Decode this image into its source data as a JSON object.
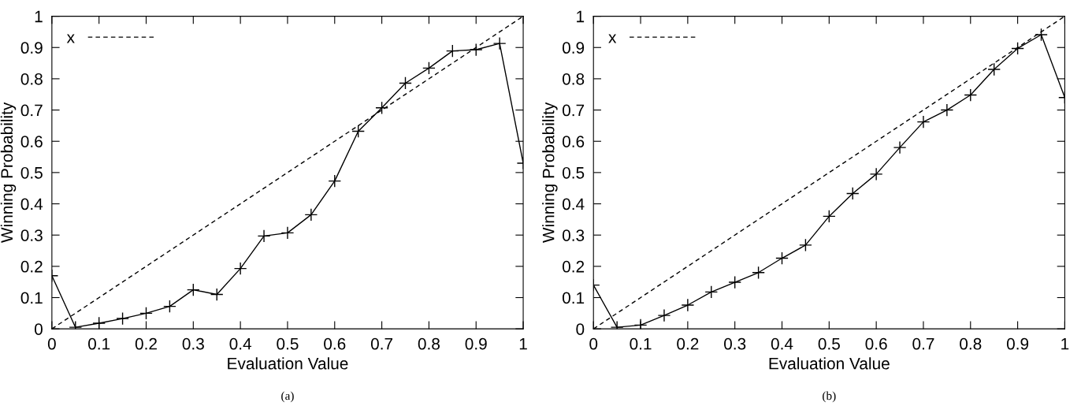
{
  "chart_data": [
    {
      "type": "line",
      "xlabel": "Evaluation Value",
      "ylabel": "Winning Probability",
      "annotations": [
        "(a)"
      ],
      "xlim": [
        0,
        1
      ],
      "ylim": [
        0,
        1
      ],
      "xticks": [
        0,
        0.1,
        0.2,
        0.3,
        0.4,
        0.5,
        0.6,
        0.7,
        0.8,
        0.9,
        1
      ],
      "yticks": [
        0,
        0.1,
        0.2,
        0.3,
        0.4,
        0.5,
        0.6,
        0.7,
        0.8,
        0.9,
        1
      ],
      "grid": false,
      "legend": "top left",
      "series": [
        {
          "color": "#000000",
          "marker": "cross",
          "line_style": "solid",
          "x": [
            0,
            0.05,
            0.1,
            0.15,
            0.2,
            0.25,
            0.3,
            0.35,
            0.4,
            0.45,
            0.5,
            0.55,
            0.6,
            0.65,
            0.7,
            0.75,
            0.8,
            0.85,
            0.9,
            0.95,
            1
          ],
          "values": [
            0.17,
            0.005,
            0.018,
            0.033,
            0.05,
            0.072,
            0.125,
            0.11,
            0.193,
            0.297,
            0.307,
            0.365,
            0.473,
            0.632,
            0.707,
            0.786,
            0.834,
            0.889,
            0.893,
            0.913,
            0.53
          ]
        },
        {
          "name": "x",
          "color": "#000000",
          "marker": "none",
          "line_style": "dashed",
          "x": [
            0,
            1
          ],
          "values": [
            0,
            1
          ]
        }
      ]
    },
    {
      "type": "line",
      "xlabel": "Evaluation Value",
      "ylabel": "Winning Probability",
      "annotations": [
        "(b)"
      ],
      "xlim": [
        0,
        1
      ],
      "ylim": [
        0,
        1
      ],
      "xticks": [
        0,
        0.1,
        0.2,
        0.3,
        0.4,
        0.5,
        0.6,
        0.7,
        0.8,
        0.9,
        1
      ],
      "yticks": [
        0,
        0.1,
        0.2,
        0.3,
        0.4,
        0.5,
        0.6,
        0.7,
        0.8,
        0.9,
        1
      ],
      "grid": false,
      "legend": "top left",
      "series": [
        {
          "color": "#000000",
          "marker": "cross",
          "line_style": "solid",
          "x": [
            0,
            0.05,
            0.1,
            0.15,
            0.2,
            0.25,
            0.3,
            0.35,
            0.4,
            0.45,
            0.5,
            0.55,
            0.6,
            0.65,
            0.7,
            0.75,
            0.8,
            0.85,
            0.9,
            0.95,
            1
          ],
          "values": [
            0.14,
            0.005,
            0.012,
            0.043,
            0.076,
            0.118,
            0.149,
            0.18,
            0.226,
            0.268,
            0.36,
            0.433,
            0.495,
            0.58,
            0.662,
            0.7,
            0.748,
            0.83,
            0.897,
            0.941,
            0.74
          ]
        },
        {
          "name": "x",
          "color": "#000000",
          "marker": "none",
          "line_style": "dashed",
          "x": [
            0,
            1
          ],
          "values": [
            0,
            1
          ]
        }
      ]
    }
  ]
}
